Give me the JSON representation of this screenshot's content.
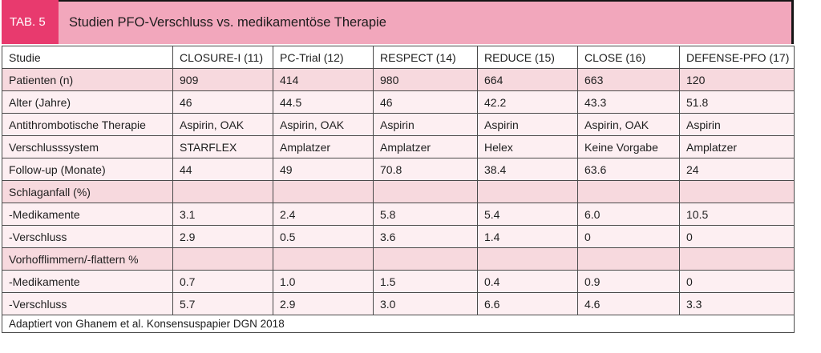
{
  "colors": {
    "tab_box": "#e83a6e",
    "band": "#f2a7bc",
    "row_section": "#f7d9de",
    "row_light": "#fdeff2",
    "grid_border": "#4b4b4b",
    "band_border": "#141414"
  },
  "header": {
    "tab_label": "TAB. 5",
    "title": "Studien PFO-Verschluss vs. medikamentöse Therapie"
  },
  "table": {
    "columns": [
      "Studie",
      "CLOSURE-I (11)",
      "PC-Trial (12)",
      "RESPECT (14)",
      "REDUCE (15)",
      "CLOSE (16)",
      "DEFENSE-PFO (17)"
    ],
    "rows": [
      {
        "label": "Patienten (n)",
        "shade": "medium",
        "values": [
          "909",
          "414",
          "980",
          "664",
          "663",
          "120"
        ]
      },
      {
        "label": "Alter (Jahre)",
        "shade": "light",
        "values": [
          "46",
          "44.5",
          "46",
          "42.2",
          "43.3",
          "51.8"
        ]
      },
      {
        "label": "Antithrombotische Therapie",
        "shade": "light",
        "values": [
          "Aspirin, OAK",
          "Aspirin, OAK",
          "Aspirin",
          "Aspirin",
          "Aspirin, OAK",
          "Aspirin"
        ]
      },
      {
        "label": "Verschlusssystem",
        "shade": "light",
        "values": [
          "STARFLEX",
          "Amplatzer",
          "Amplatzer",
          "Helex",
          "Keine Vorgabe",
          "Amplatzer"
        ]
      },
      {
        "label": "Follow-up (Monate)",
        "shade": "light",
        "values": [
          "44",
          "49",
          "70.8",
          "38.4",
          "63.6",
          "24"
        ]
      },
      {
        "label": "Schlaganfall (%)",
        "shade": "medium",
        "values": [
          "",
          "",
          "",
          "",
          "",
          ""
        ]
      },
      {
        "label": "-Medikamente",
        "shade": "light",
        "values": [
          "3.1",
          "2.4",
          "5.8",
          "5.4",
          "6.0",
          "10.5"
        ]
      },
      {
        "label": "-Verschluss",
        "shade": "light",
        "values": [
          "2.9",
          "0.5",
          "3.6",
          "1.4",
          "0",
          "0"
        ]
      },
      {
        "label": "Vorhofflimmern/-flattern %",
        "shade": "medium",
        "values": [
          "",
          "",
          "",
          "",
          "",
          ""
        ]
      },
      {
        "label": "-Medikamente",
        "shade": "light",
        "values": [
          "0.7",
          "1.0",
          "1.5",
          "0.4",
          "0.9",
          "0"
        ]
      },
      {
        "label": "-Verschluss",
        "shade": "light",
        "values": [
          "5.7",
          "2.9",
          "3.0",
          "6.6",
          "4.6",
          "3.3"
        ]
      }
    ],
    "footer": "Adaptiert von Ghanem et al. Konsensuspapier DGN 2018"
  }
}
